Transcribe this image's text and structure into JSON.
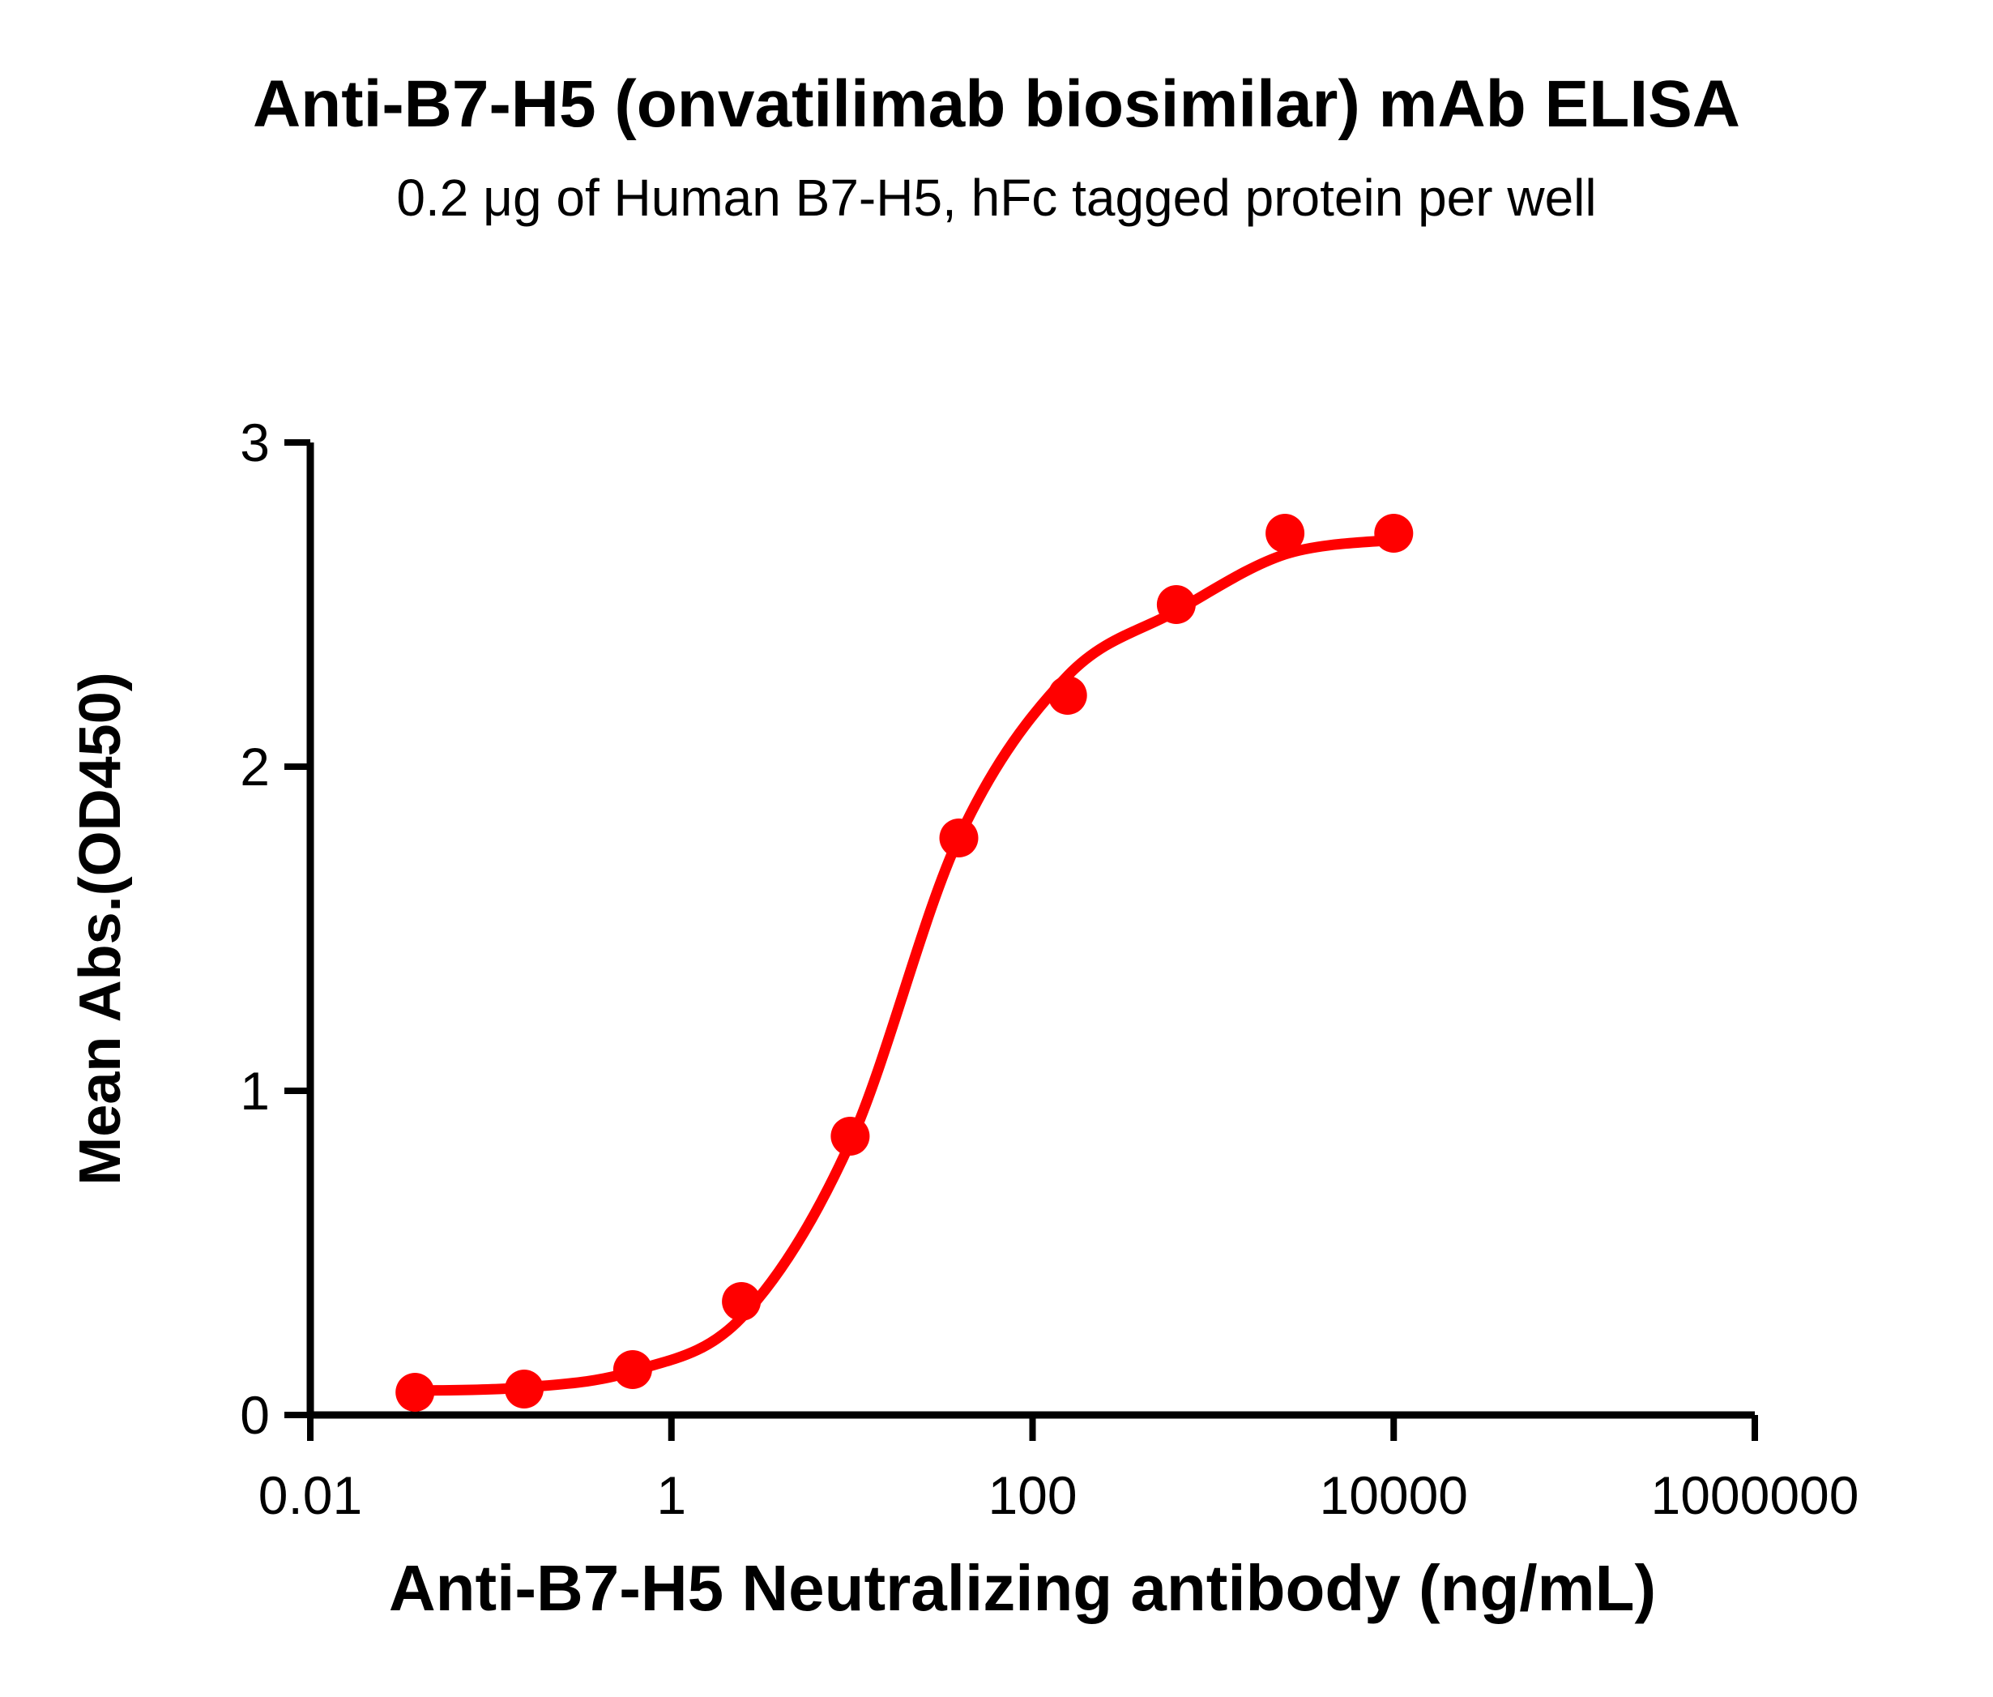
{
  "colors": {
    "accent": "#FF0000",
    "axis": "#000000",
    "text": "#000000",
    "background": "#FFFFFF"
  },
  "chart_data": {
    "type": "scatter",
    "title": "Anti-B7-H5 (onvatilimab biosimilar) mAb ELISA",
    "subtitle": "0.2 μg of Human B7-H5, hFc tagged protein per well",
    "xlabel": "Anti-B7-H5 Neutralizing antibody (ng/mL)",
    "ylabel": "Mean Abs.(OD450)",
    "x_scale": "log10",
    "xlim": [
      0.01,
      1000000
    ],
    "ylim": [
      0,
      3
    ],
    "grid": false,
    "legend_position": "none",
    "x_ticks": {
      "values": [
        0.01,
        1,
        100,
        10000,
        1000000
      ],
      "labels": [
        "0.01",
        "1",
        "100",
        "10000",
        "1000000"
      ]
    },
    "y_ticks": {
      "values": [
        0,
        1,
        2,
        3
      ],
      "labels": [
        "0",
        "1",
        "2",
        "3"
      ]
    },
    "series": [
      {
        "name": "Anti-B7-H5 neutralizing antibody",
        "color": "#FF0000",
        "marker": "circle",
        "points": [
          {
            "x": 0.038,
            "y": 0.07
          },
          {
            "x": 0.153,
            "y": 0.08
          },
          {
            "x": 0.61,
            "y": 0.14
          },
          {
            "x": 2.44,
            "y": 0.35
          },
          {
            "x": 9.77,
            "y": 0.86
          },
          {
            "x": 39.06,
            "y": 1.78
          },
          {
            "x": 156.25,
            "y": 2.22
          },
          {
            "x": 625,
            "y": 2.5
          },
          {
            "x": 2500,
            "y": 2.72
          },
          {
            "x": 10000,
            "y": 2.72
          }
        ]
      }
    ],
    "fit_curve": {
      "model": "4PL sigmoid dose-response fit",
      "color": "#FF0000",
      "points": [
        [
          0.038,
          0.075
        ],
        [
          0.153,
          0.085
        ],
        [
          0.61,
          0.135
        ],
        [
          2.44,
          0.3
        ],
        [
          9.77,
          0.84
        ],
        [
          39.06,
          1.78
        ],
        [
          156.25,
          2.28
        ],
        [
          625,
          2.48
        ],
        [
          2500,
          2.655
        ],
        [
          10000,
          2.7
        ]
      ]
    }
  }
}
